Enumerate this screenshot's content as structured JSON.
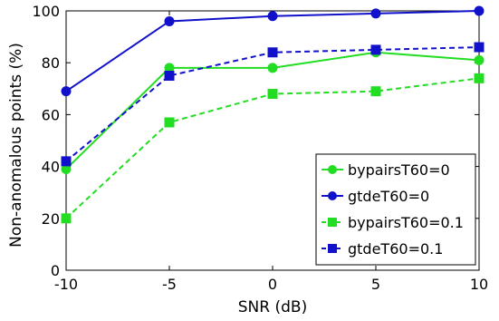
{
  "chart_data": {
    "type": "line",
    "xlabel": "SNR (dB)",
    "ylabel": "Non-anomalous points (%)",
    "x": [
      -10,
      -5,
      0,
      5,
      10
    ],
    "xlim": [
      -10,
      10
    ],
    "ylim": [
      0,
      100
    ],
    "xticks": [
      -10,
      -5,
      0,
      5,
      10
    ],
    "yticks": [
      0,
      20,
      40,
      60,
      80,
      100
    ],
    "grid": false,
    "legend_position": "bottom-right",
    "series": [
      {
        "name": "bypairsT60=0",
        "values": [
          39,
          78,
          78,
          84,
          81
        ],
        "color": "#22dd22",
        "line_style": "solid",
        "marker": "circle"
      },
      {
        "name": "gtdeT60=0",
        "values": [
          69,
          96,
          98,
          99,
          100
        ],
        "color": "#1111cc",
        "line_style": "solid",
        "marker": "circle"
      },
      {
        "name": "bypairsT60=0.1",
        "values": [
          20,
          57,
          68,
          69,
          74
        ],
        "color": "#22dd22",
        "line_style": "dashed",
        "marker": "square"
      },
      {
        "name": "gtdeT60=0.1",
        "values": [
          42,
          75,
          84,
          85,
          86
        ],
        "color": "#1111cc",
        "line_style": "dashed",
        "marker": "square"
      }
    ]
  }
}
